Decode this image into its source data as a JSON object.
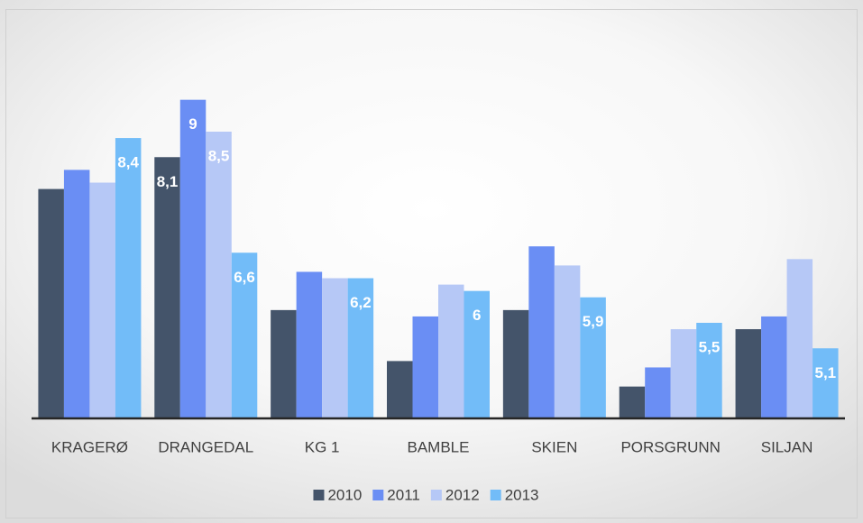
{
  "chart_data": {
    "type": "bar",
    "categories": [
      "KRAGERØ",
      "DRANGEDAL",
      "KG 1",
      "BAMBLE",
      "SKIEN",
      "PORSGRUNN",
      "SILJAN"
    ],
    "series": [
      {
        "name": "2010",
        "color": "#44546a",
        "values": [
          7.6,
          8.1,
          5.7,
          4.9,
          5.7,
          4.5,
          5.4
        ],
        "value_labels": [
          null,
          "8,1",
          null,
          null,
          null,
          null,
          null
        ]
      },
      {
        "name": "2011",
        "color": "#6a8ef4",
        "values": [
          7.9,
          9,
          6.3,
          5.6,
          6.7,
          4.8,
          5.6
        ],
        "value_labels": [
          null,
          "9",
          null,
          null,
          null,
          null,
          null
        ]
      },
      {
        "name": "2012",
        "color": "#b6c8f6",
        "values": [
          7.7,
          8.5,
          6.2,
          6.1,
          6.4,
          5.4,
          6.5
        ],
        "value_labels": [
          null,
          "8,5",
          null,
          null,
          null,
          null,
          null
        ]
      },
      {
        "name": "2013",
        "color": "#72bcf8",
        "values": [
          8.4,
          6.6,
          6.2,
          6,
          5.9,
          5.5,
          5.1
        ],
        "value_labels": [
          "8,4",
          "6,6",
          "6,2",
          "6",
          "5,9",
          "5,5",
          "5,1"
        ]
      }
    ],
    "ylim": [
      4,
      10
    ]
  }
}
